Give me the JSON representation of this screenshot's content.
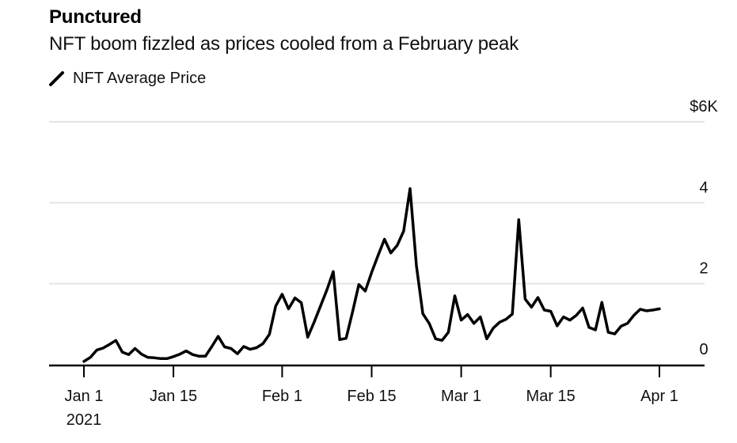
{
  "header": {
    "title": "Punctured",
    "subtitle": "NFT boom fizzled as prices cooled from a February peak"
  },
  "legend": {
    "series_label": "NFT Average Price",
    "marker": "diagonal-line-slash"
  },
  "colors": {
    "line": "#000000",
    "grid": "#e4e4e4",
    "axis": "#000000",
    "text": "#111111",
    "background": "#ffffff"
  },
  "chart_data": {
    "type": "line",
    "title": "Punctured",
    "subtitle": "NFT boom fizzled as prices cooled from a February peak",
    "series_name": "NFT Average Price",
    "x_unit": "day",
    "x_range": [
      "Jan 1 2021",
      "Apr 1 2021"
    ],
    "y_unit": "$K",
    "ylim": [
      0,
      6
    ],
    "grid": "horizontal",
    "legend_position": "top-left",
    "y_axis_side": "right",
    "y_ticks": [
      0,
      2,
      4,
      6
    ],
    "y_tick_labels": [
      "0",
      "2",
      "4",
      "$6K"
    ],
    "x_tick_days": [
      0,
      14,
      31,
      45,
      59,
      73,
      90
    ],
    "x_tick_labels": [
      [
        "Jan 1",
        "2021"
      ],
      [
        "Jan 15"
      ],
      [
        "Feb 1"
      ],
      [
        "Feb 15"
      ],
      [
        "Mar 1"
      ],
      [
        "Mar 15"
      ],
      [
        "Apr 1"
      ]
    ],
    "values_note": "daily NFT average price in $K from Jan 1 2021 to Apr 1 2021",
    "values": [
      0.08,
      0.18,
      0.36,
      0.41,
      0.5,
      0.6,
      0.31,
      0.25,
      0.4,
      0.26,
      0.18,
      0.17,
      0.15,
      0.15,
      0.2,
      0.26,
      0.34,
      0.25,
      0.21,
      0.21,
      0.45,
      0.7,
      0.44,
      0.4,
      0.27,
      0.45,
      0.38,
      0.42,
      0.52,
      0.75,
      1.45,
      1.74,
      1.38,
      1.65,
      1.53,
      0.68,
      1.05,
      1.45,
      1.85,
      2.3,
      0.62,
      0.65,
      1.3,
      1.98,
      1.82,
      2.28,
      2.7,
      3.1,
      2.76,
      2.95,
      3.3,
      4.35,
      2.45,
      1.26,
      1.02,
      0.64,
      0.6,
      0.8,
      1.7,
      1.1,
      1.24,
      1.02,
      1.18,
      0.64,
      0.9,
      1.05,
      1.12,
      1.25,
      3.58,
      1.62,
      1.42,
      1.66,
      1.35,
      1.32,
      0.96,
      1.18,
      1.1,
      1.22,
      1.4,
      0.92,
      0.86,
      1.54,
      0.8,
      0.76,
      0.95,
      1.02,
      1.22,
      1.37,
      1.33,
      1.35,
      1.38
    ]
  }
}
